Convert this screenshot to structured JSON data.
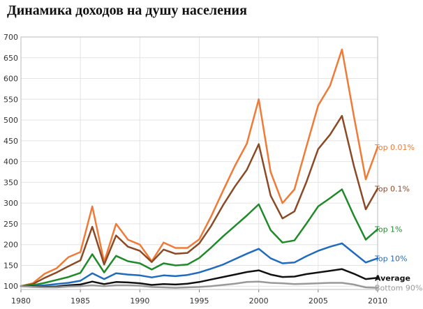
{
  "page": {
    "title": "Динамика доходов на душу населения"
  },
  "chart_data": {
    "type": "line",
    "title": "Динамика доходов на душу населения",
    "xlabel": "",
    "ylabel": "",
    "xlim": [
      1980,
      2010
    ],
    "ylim": [
      92,
      700
    ],
    "x_ticks": [
      1980,
      1985,
      1990,
      1995,
      2000,
      2005,
      2010
    ],
    "y_ticks": [
      100,
      150,
      200,
      250,
      300,
      350,
      400,
      450,
      500,
      550,
      600,
      650,
      700
    ],
    "grid": true,
    "legend": "inline-right",
    "x": [
      1980,
      1981,
      1982,
      1983,
      1984,
      1985,
      1986,
      1987,
      1988,
      1989,
      1990,
      1991,
      1992,
      1993,
      1994,
      1995,
      1996,
      1997,
      1998,
      1999,
      2000,
      2001,
      2002,
      2003,
      2004,
      2005,
      2006,
      2007,
      2008,
      2009,
      2010
    ],
    "series": [
      {
        "name": "Top 0.01%",
        "color": "#f07a36",
        "values": [
          100,
          107,
          130,
          143,
          170,
          182,
          292,
          158,
          250,
          212,
          200,
          160,
          205,
          192,
          192,
          213,
          268,
          330,
          390,
          443,
          550,
          375,
          300,
          333,
          435,
          535,
          583,
          670,
          510,
          357,
          435
        ]
      },
      {
        "name": "Top 0.1%",
        "color": "#8b4a26",
        "values": [
          100,
          105,
          120,
          133,
          148,
          162,
          243,
          152,
          222,
          195,
          185,
          158,
          188,
          178,
          180,
          203,
          245,
          295,
          340,
          380,
          442,
          318,
          263,
          280,
          350,
          430,
          465,
          510,
          390,
          285,
          335
        ]
      },
      {
        "name": "Top 1%",
        "color": "#1f8a2a",
        "values": [
          100,
          102,
          108,
          115,
          122,
          132,
          177,
          133,
          173,
          160,
          155,
          140,
          155,
          150,
          152,
          168,
          193,
          220,
          245,
          270,
          297,
          235,
          205,
          210,
          250,
          292,
          312,
          333,
          270,
          212,
          237
        ]
      },
      {
        "name": "Top 10%",
        "color": "#1f6bbf",
        "values": [
          100,
          100,
          102,
          105,
          108,
          113,
          131,
          117,
          131,
          128,
          126,
          121,
          126,
          124,
          127,
          133,
          142,
          152,
          165,
          178,
          190,
          167,
          155,
          157,
          172,
          185,
          195,
          203,
          180,
          157,
          167
        ]
      },
      {
        "name": "Average",
        "color": "#111111",
        "values": [
          100,
          99,
          98,
          99,
          102,
          104,
          111,
          105,
          110,
          109,
          107,
          103,
          105,
          104,
          106,
          110,
          116,
          122,
          128,
          134,
          138,
          128,
          122,
          123,
          129,
          133,
          137,
          141,
          130,
          117,
          120
        ]
      },
      {
        "name": "Bottom 90%",
        "color": "#999999",
        "values": [
          100,
          98,
          97,
          97,
          99,
          100,
          102,
          100,
          102,
          102,
          101,
          98,
          97,
          96,
          97,
          98,
          100,
          103,
          106,
          110,
          111,
          108,
          107,
          105,
          106,
          107,
          108,
          108,
          104,
          97,
          96
        ]
      }
    ]
  }
}
